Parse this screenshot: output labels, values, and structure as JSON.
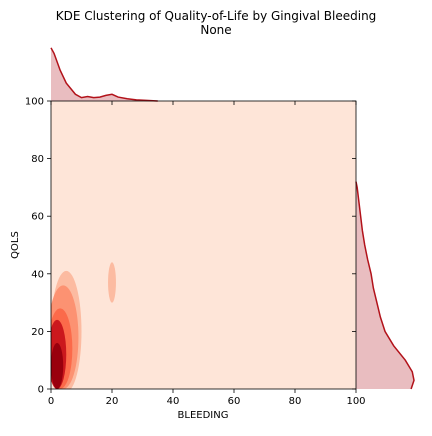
{
  "chart_data": {
    "type": "heatmap",
    "kind": "kde-joint",
    "title": "KDE Clustering of Quality-of-Life by Gingival Bleeding",
    "subtitle": "None",
    "xlabel": "BLEEDING",
    "ylabel": "QOLS",
    "xlim": [
      0,
      100
    ],
    "ylim": [
      0,
      100
    ],
    "x_ticks": [
      0,
      20,
      40,
      60,
      80,
      100
    ],
    "y_ticks": [
      0,
      20,
      40,
      60,
      80,
      100
    ],
    "grid": false,
    "colormap": "Reds",
    "density_regions": [
      {
        "cx": 2,
        "cy": 8,
        "rx": 2,
        "ry": 8,
        "level": 0.95
      },
      {
        "cx": 2,
        "cy": 12,
        "rx": 3,
        "ry": 12,
        "level": 0.75
      },
      {
        "cx": 3,
        "cy": 14,
        "rx": 4,
        "ry": 14,
        "level": 0.55
      },
      {
        "cx": 4,
        "cy": 18,
        "rx": 5,
        "ry": 18,
        "level": 0.35
      },
      {
        "cx": 5,
        "cy": 20,
        "rx": 5,
        "ry": 21,
        "level": 0.18
      },
      {
        "cx": 20,
        "cy": 37,
        "rx": 1.3,
        "ry": 7,
        "level": 0.1
      }
    ],
    "marginal_x": {
      "x": [
        0,
        1,
        3,
        5,
        8,
        10,
        12,
        14,
        16,
        18,
        20,
        22,
        25,
        28,
        32,
        35
      ],
      "density": [
        0.95,
        0.85,
        0.55,
        0.32,
        0.12,
        0.06,
        0.08,
        0.06,
        0.07,
        0.1,
        0.12,
        0.07,
        0.04,
        0.02,
        0.01,
        0.0
      ]
    },
    "marginal_y": {
      "y": [
        0,
        3,
        6,
        10,
        15,
        20,
        25,
        30,
        35,
        40,
        45,
        50,
        55,
        60,
        65,
        70,
        72
      ],
      "density": [
        0.95,
        1.0,
        0.97,
        0.85,
        0.65,
        0.5,
        0.42,
        0.36,
        0.3,
        0.26,
        0.2,
        0.15,
        0.11,
        0.08,
        0.05,
        0.02,
        0.0
      ]
    }
  },
  "colors": {
    "background": "#fee5d8",
    "line": "#b2121a",
    "fill": "#e9bdc0"
  }
}
